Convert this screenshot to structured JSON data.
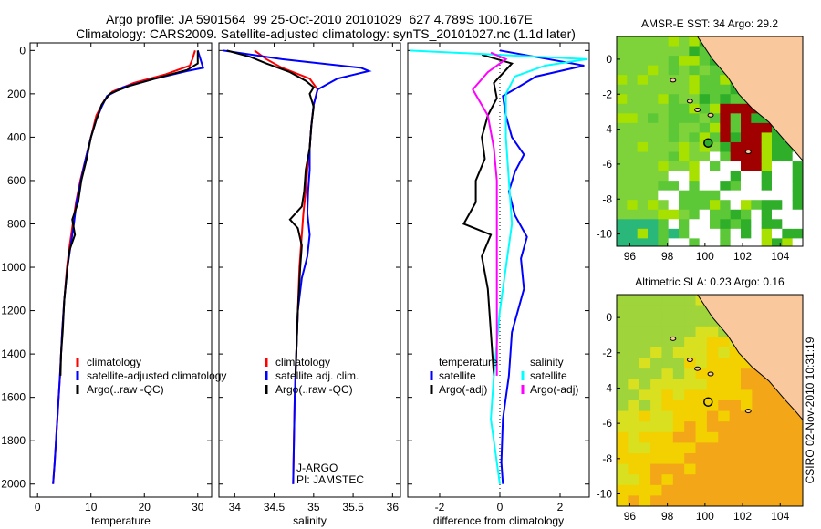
{
  "title_line1": "Argo profile: JA 5901564_99 25-Oct-2010 20101029_627 4.789S 100.167E",
  "title_line2": "Climatology: CARS2009. Satellite-adjusted climatology: synTS_20101027.nc (1.1d later)",
  "footer_stamp": "CSIRO 02-Nov-2010 10:31:19",
  "colors": {
    "climatology": "#ff0000",
    "satellite": "#0000ff",
    "argo": "#000000",
    "sal_satellite": "#00ffff",
    "sal_argo": "#ff00ff",
    "land": "#f9c89d"
  },
  "chart_data": [
    {
      "type": "line",
      "id": "temperature",
      "xlabel": "temperature",
      "xlim": [
        -1.4,
        32.6
      ],
      "ylim": [
        -35,
        2060
      ],
      "xticks": [
        0,
        10,
        20,
        30
      ],
      "yticks": [
        0,
        200,
        400,
        600,
        800,
        1000,
        1200,
        1400,
        1600,
        1800,
        2000
      ],
      "legend": [
        "climatology",
        "satellite-adjusted climatology",
        "Argo(..raw -QC)"
      ],
      "series": [
        {
          "name": "climatology",
          "color": "#ff0000",
          "points": [
            [
              29.5,
              0
            ],
            [
              29,
              40
            ],
            [
              28.5,
              70
            ],
            [
              24,
              110
            ],
            [
              18,
              150
            ],
            [
              14,
              190
            ],
            [
              12.5,
              230
            ],
            [
              11,
              300
            ],
            [
              10,
              400
            ],
            [
              9,
              500
            ],
            [
              8,
              600
            ],
            [
              7.2,
              700
            ],
            [
              6.6,
              800
            ],
            [
              6,
              900
            ],
            [
              5.5,
              1000
            ],
            [
              5,
              1150
            ],
            [
              4.6,
              1300
            ],
            [
              4.2,
              1500
            ],
            [
              3.7,
              1700
            ],
            [
              3.2,
              1900
            ],
            [
              2.9,
              2000
            ]
          ]
        },
        {
          "name": "satellite-adjusted climatology",
          "color": "#0000ff",
          "points": [
            [
              30,
              0
            ],
            [
              31,
              80
            ],
            [
              28,
              95
            ],
            [
              22,
              130
            ],
            [
              16,
              170
            ],
            [
              13,
              210
            ],
            [
              12,
              260
            ],
            [
              11,
              320
            ],
            [
              10,
              400
            ],
            [
              9,
              500
            ],
            [
              8.1,
              600
            ],
            [
              7.3,
              700
            ],
            [
              6.8,
              800
            ],
            [
              6.2,
              900
            ],
            [
              5.6,
              1000
            ],
            [
              5,
              1150
            ],
            [
              4.6,
              1300
            ],
            [
              4.2,
              1500
            ],
            [
              3.7,
              1700
            ],
            [
              3.2,
              1900
            ],
            [
              2.9,
              2000
            ]
          ]
        },
        {
          "name": "Argo(..raw -QC)",
          "color": "#000000",
          "points": [
            [
              30,
              0
            ],
            [
              30,
              60
            ],
            [
              28,
              90
            ],
            [
              22,
              130
            ],
            [
              17,
              165
            ],
            [
              13.5,
              200
            ],
            [
              12,
              250
            ],
            [
              11,
              320
            ],
            [
              10,
              400
            ],
            [
              9.2,
              500
            ],
            [
              8.2,
              600
            ],
            [
              7.6,
              700
            ],
            [
              6.5,
              780
            ],
            [
              7,
              850
            ],
            [
              6,
              920
            ],
            [
              5.6,
              1000
            ],
            [
              5,
              1150
            ],
            [
              4.7,
              1300
            ],
            [
              4.4,
              1400
            ],
            [
              4.3,
              1500
            ]
          ]
        }
      ]
    },
    {
      "type": "line",
      "id": "salinity",
      "xlabel": "salinity",
      "xlim": [
        33.8,
        36.1
      ],
      "ylim": [
        -35,
        2060
      ],
      "xticks": [
        34,
        34.5,
        35,
        35.5,
        36
      ],
      "legend": [
        "climatology",
        "satellite adj. clim.",
        "Argo(..raw -QC)"
      ],
      "annotations": [
        "J-ARGO",
        "PI: JAMSTEC"
      ],
      "series": [
        {
          "name": "climatology",
          "color": "#ff0000",
          "points": [
            [
              34.25,
              0
            ],
            [
              34.4,
              40
            ],
            [
              34.6,
              80
            ],
            [
              34.95,
              130
            ],
            [
              35.05,
              180
            ],
            [
              35.0,
              250
            ],
            [
              34.97,
              350
            ],
            [
              34.95,
              450
            ],
            [
              34.92,
              550
            ],
            [
              34.9,
              650
            ],
            [
              34.87,
              750
            ],
            [
              34.85,
              850
            ],
            [
              34.82,
              1000
            ],
            [
              34.8,
              1200
            ],
            [
              34.78,
              1400
            ],
            [
              34.76,
              1600
            ],
            [
              34.75,
              1800
            ],
            [
              34.74,
              2000
            ]
          ]
        },
        {
          "name": "satellite adj. clim.",
          "color": "#0000ff",
          "points": [
            [
              33.85,
              0
            ],
            [
              34.6,
              40
            ],
            [
              35.6,
              80
            ],
            [
              35.7,
              95
            ],
            [
              35.3,
              130
            ],
            [
              35.05,
              180
            ],
            [
              35.0,
              250
            ],
            [
              34.97,
              350
            ],
            [
              34.95,
              450
            ],
            [
              34.95,
              550
            ],
            [
              34.93,
              650
            ],
            [
              34.92,
              750
            ],
            [
              34.95,
              850
            ],
            [
              34.92,
              950
            ],
            [
              34.85,
              1050
            ],
            [
              34.8,
              1200
            ],
            [
              34.78,
              1400
            ],
            [
              34.76,
              1600
            ],
            [
              34.75,
              1800
            ],
            [
              34.74,
              2000
            ]
          ]
        },
        {
          "name": "Argo(..raw -QC)",
          "color": "#000000",
          "points": [
            [
              33.9,
              0
            ],
            [
              34.2,
              30
            ],
            [
              34.4,
              60
            ],
            [
              34.7,
              100
            ],
            [
              34.9,
              140
            ],
            [
              35.0,
              170
            ],
            [
              34.95,
              200
            ],
            [
              35.0,
              260
            ],
            [
              34.97,
              350
            ],
            [
              34.95,
              450
            ],
            [
              34.9,
              550
            ],
            [
              34.88,
              650
            ],
            [
              34.85,
              720
            ],
            [
              34.7,
              780
            ],
            [
              34.8,
              820
            ],
            [
              34.85,
              900
            ],
            [
              34.83,
              1000
            ],
            [
              34.8,
              1200
            ],
            [
              34.78,
              1400
            ],
            [
              34.77,
              1500
            ]
          ]
        }
      ]
    },
    {
      "type": "line",
      "id": "difference",
      "xlabel": "difference from climatology",
      "xlim": [
        -3.06,
        2.97
      ],
      "ylim": [
        -35,
        2060
      ],
      "xticks": [
        -2,
        0,
        2
      ],
      "legend_left": {
        "header": "temperature",
        "items": [
          "satellite",
          "Argo(-adj)"
        ]
      },
      "legend_right": {
        "header": "salinity",
        "items": [
          "satellite",
          "Argo(-adj)"
        ]
      },
      "series": [
        {
          "name": "temperature satellite",
          "color": "#0000ff",
          "points": [
            [
              0,
              0
            ],
            [
              2.8,
              70
            ],
            [
              1.2,
              120
            ],
            [
              0.6,
              170
            ],
            [
              0.1,
              210
            ],
            [
              0.2,
              300
            ],
            [
              0.4,
              400
            ],
            [
              0.8,
              480
            ],
            [
              0.5,
              560
            ],
            [
              0.3,
              650
            ],
            [
              0.5,
              760
            ],
            [
              0.9,
              860
            ],
            [
              0.7,
              960
            ],
            [
              0.8,
              1100
            ],
            [
              0.4,
              1300
            ],
            [
              0.3,
              1500
            ],
            [
              0.1,
              1700
            ],
            [
              0.05,
              1900
            ],
            [
              0.1,
              2000
            ]
          ]
        },
        {
          "name": "temperature Argo(-adj)",
          "color": "#000000",
          "points": [
            [
              -0.6,
              20
            ],
            [
              0.4,
              60
            ],
            [
              -0.2,
              150
            ],
            [
              -0.1,
              220
            ],
            [
              -0.4,
              300
            ],
            [
              -0.6,
              400
            ],
            [
              -0.5,
              500
            ],
            [
              -0.8,
              600
            ],
            [
              -0.8,
              700
            ],
            [
              -1.2,
              800
            ],
            [
              -0.3,
              850
            ],
            [
              -0.6,
              950
            ],
            [
              -0.4,
              1100
            ],
            [
              -0.3,
              1300
            ],
            [
              -0.2,
              1500
            ]
          ]
        },
        {
          "name": "salinity satellite",
          "color": "#00ffff",
          "points": [
            [
              -3,
              0
            ],
            [
              0,
              20
            ],
            [
              2.9,
              40
            ],
            [
              1.5,
              70
            ],
            [
              0.5,
              120
            ],
            [
              0.2,
              200
            ],
            [
              0.2,
              400
            ],
            [
              0.3,
              600
            ],
            [
              0.4,
              800
            ],
            [
              0.2,
              1000
            ],
            [
              0,
              1200
            ],
            [
              -0.2,
              1500
            ],
            [
              -0.3,
              1700
            ],
            [
              -0.1,
              1900
            ],
            [
              0,
              2000
            ]
          ]
        },
        {
          "name": "salinity Argo(-adj)",
          "color": "#ff00ff",
          "points": [
            [
              -0.3,
              10
            ],
            [
              0.2,
              40
            ],
            [
              -0.4,
              100
            ],
            [
              -0.9,
              180
            ],
            [
              -0.4,
              300
            ],
            [
              -0.2,
              450
            ],
            [
              -0.1,
              600
            ],
            [
              -0.1,
              800
            ],
            [
              -0.1,
              1000
            ],
            [
              -0.1,
              1200
            ],
            [
              -0.1,
              1500
            ]
          ]
        }
      ]
    }
  ],
  "maps": [
    {
      "id": "sst",
      "title": "AMSR-E SST: 34 Argo: 29.2",
      "lon": [
        95.3,
        105.2
      ],
      "lat": [
        -10.7,
        1.3
      ],
      "lonticks": [
        96,
        98,
        100,
        102,
        104
      ],
      "latticks": [
        0,
        -2,
        -4,
        -6,
        -8,
        -10
      ]
    },
    {
      "id": "sla",
      "title": "Altimetric SLA: 0.23 Argo: 0.16",
      "lon": [
        95.3,
        105.2
      ],
      "lat": [
        -10.7,
        1.3
      ],
      "lonticks": [
        96,
        98,
        100,
        102,
        104
      ],
      "latticks": [
        0,
        -2,
        -4,
        -6,
        -8,
        -10
      ]
    }
  ],
  "float_position": {
    "lon": 100.167,
    "lat": -4.789
  }
}
